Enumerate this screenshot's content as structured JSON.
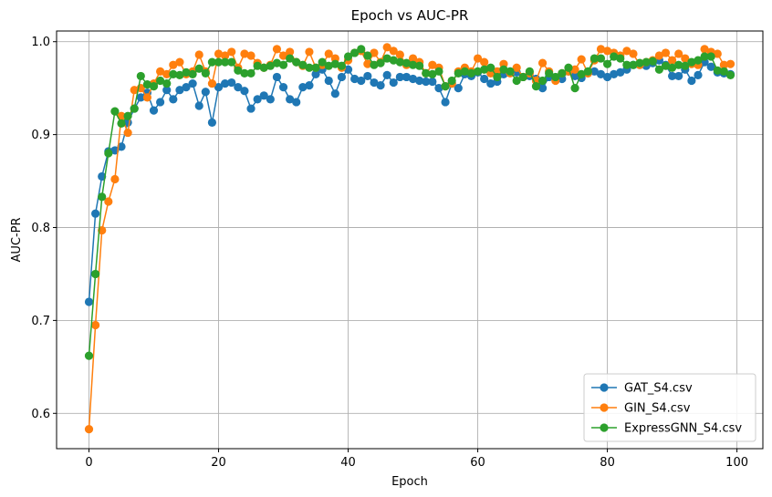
{
  "chart_data": {
    "type": "line",
    "title": "Epoch vs AUC-PR",
    "xlabel": "Epoch",
    "ylabel": "AUC-PR",
    "xlim": [
      -5,
      104
    ],
    "ylim": [
      0.562,
      1.0115
    ],
    "xticks": [
      0,
      20,
      40,
      60,
      80,
      100
    ],
    "xtick_labels": [
      "0",
      "20",
      "40",
      "60",
      "80",
      "100"
    ],
    "yticks": [
      0.6,
      0.7,
      0.8,
      0.9,
      1.0
    ],
    "ytick_labels": [
      "0.6",
      "0.7",
      "0.8",
      "0.9",
      "1.0"
    ],
    "grid": true,
    "legend_position": "lower-right",
    "series": [
      {
        "name": "GAT_S4.csv",
        "color": "#1f77b4",
        "values": [
          0.72,
          0.815,
          0.855,
          0.882,
          0.883,
          0.887,
          0.913,
          0.928,
          0.94,
          0.945,
          0.926,
          0.935,
          0.948,
          0.938,
          0.948,
          0.951,
          0.955,
          0.931,
          0.946,
          0.913,
          0.951,
          0.955,
          0.956,
          0.951,
          0.947,
          0.928,
          0.938,
          0.942,
          0.938,
          0.962,
          0.951,
          0.938,
          0.935,
          0.951,
          0.953,
          0.965,
          0.97,
          0.958,
          0.944,
          0.962,
          0.97,
          0.96,
          0.958,
          0.963,
          0.956,
          0.953,
          0.964,
          0.956,
          0.962,
          0.962,
          0.96,
          0.958,
          0.957,
          0.957,
          0.95,
          0.935,
          0.955,
          0.95,
          0.965,
          0.963,
          0.967,
          0.96,
          0.955,
          0.957,
          0.965,
          0.968,
          0.967,
          0.962,
          0.963,
          0.96,
          0.95,
          0.962,
          0.96,
          0.96,
          0.968,
          0.963,
          0.961,
          0.966,
          0.968,
          0.965,
          0.962,
          0.965,
          0.967,
          0.97,
          0.975,
          0.975,
          0.974,
          0.977,
          0.98,
          0.975,
          0.963,
          0.963,
          0.97,
          0.958,
          0.964,
          0.978,
          0.973,
          0.967,
          0.966,
          0.965
        ]
      },
      {
        "name": "GIN_S4.csv",
        "color": "#ff7f0e",
        "values": [
          0.583,
          0.695,
          0.797,
          0.828,
          0.852,
          0.92,
          0.902,
          0.948,
          0.95,
          0.94,
          0.955,
          0.968,
          0.965,
          0.975,
          0.978,
          0.965,
          0.968,
          0.986,
          0.968,
          0.955,
          0.987,
          0.985,
          0.989,
          0.972,
          0.987,
          0.985,
          0.977,
          0.972,
          0.975,
          0.992,
          0.985,
          0.989,
          0.978,
          0.974,
          0.989,
          0.972,
          0.975,
          0.987,
          0.982,
          0.972,
          0.98,
          0.988,
          0.99,
          0.976,
          0.988,
          0.978,
          0.994,
          0.99,
          0.986,
          0.975,
          0.982,
          0.978,
          0.966,
          0.975,
          0.972,
          0.952,
          0.955,
          0.968,
          0.972,
          0.968,
          0.982,
          0.978,
          0.966,
          0.968,
          0.976,
          0.966,
          0.972,
          0.962,
          0.966,
          0.958,
          0.977,
          0.968,
          0.958,
          0.966,
          0.968,
          0.97,
          0.981,
          0.966,
          0.98,
          0.992,
          0.99,
          0.988,
          0.985,
          0.99,
          0.987,
          0.975,
          0.978,
          0.98,
          0.985,
          0.988,
          0.98,
          0.987,
          0.982,
          0.976,
          0.975,
          0.992,
          0.989,
          0.987,
          0.975,
          0.976
        ]
      },
      {
        "name": "ExpressGNN_S4.csv",
        "color": "#2ca02c",
        "values": [
          0.662,
          0.75,
          0.833,
          0.88,
          0.925,
          0.912,
          0.92,
          0.928,
          0.963,
          0.954,
          0.952,
          0.958,
          0.955,
          0.965,
          0.964,
          0.967,
          0.965,
          0.971,
          0.966,
          0.978,
          0.978,
          0.978,
          0.978,
          0.969,
          0.966,
          0.966,
          0.974,
          0.972,
          0.974,
          0.977,
          0.975,
          0.982,
          0.978,
          0.975,
          0.972,
          0.972,
          0.978,
          0.974,
          0.976,
          0.974,
          0.984,
          0.988,
          0.992,
          0.985,
          0.975,
          0.977,
          0.982,
          0.98,
          0.978,
          0.977,
          0.975,
          0.974,
          0.966,
          0.965,
          0.968,
          0.952,
          0.958,
          0.966,
          0.968,
          0.966,
          0.968,
          0.97,
          0.972,
          0.962,
          0.97,
          0.968,
          0.958,
          0.962,
          0.968,
          0.952,
          0.958,
          0.966,
          0.962,
          0.966,
          0.972,
          0.95,
          0.965,
          0.968,
          0.982,
          0.982,
          0.976,
          0.984,
          0.982,
          0.975,
          0.975,
          0.977,
          0.978,
          0.979,
          0.97,
          0.974,
          0.972,
          0.975,
          0.974,
          0.978,
          0.98,
          0.984,
          0.984,
          0.969,
          0.968,
          0.964
        ]
      }
    ]
  }
}
